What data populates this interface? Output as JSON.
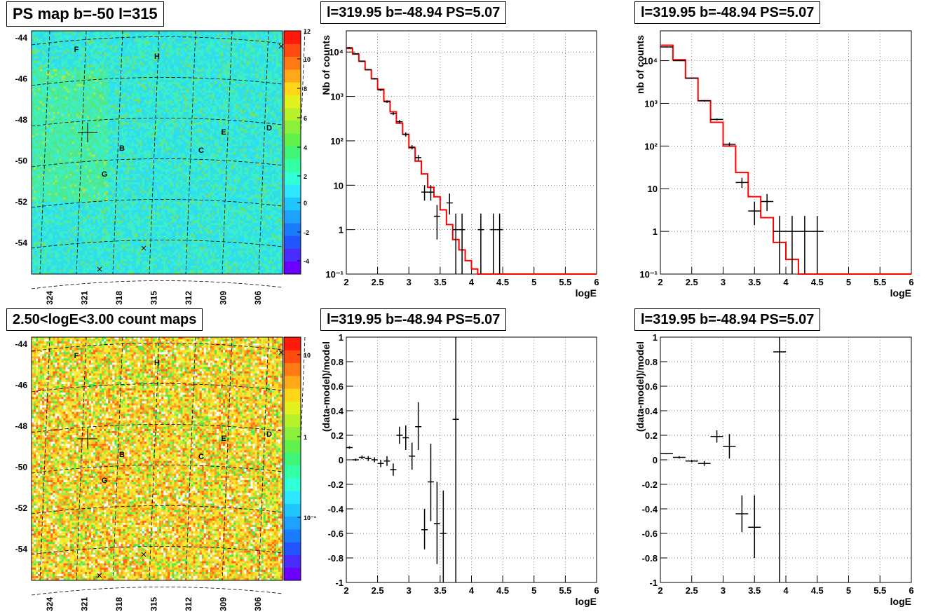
{
  "panels": {
    "map_top": {
      "title": "PS map b=-50 l=315",
      "y_ticks": [
        "-44",
        "-46",
        "-48",
        "-50",
        "-52",
        "-54"
      ],
      "x_ticks": [
        "324",
        "321",
        "318",
        "315",
        "312",
        "309",
        "306"
      ],
      "colorbar_ticks": [
        "12",
        "10",
        "8",
        "6",
        "4",
        "2",
        "0",
        "-2",
        "-4"
      ],
      "labels": [
        "F",
        "H",
        "E",
        "D",
        "B",
        "C",
        "G"
      ]
    },
    "map_bottom": {
      "title": "2.50<logE<3.00 count maps",
      "y_ticks": [
        "-44",
        "-46",
        "-48",
        "-50",
        "-52",
        "-54"
      ],
      "x_ticks": [
        "324",
        "321",
        "318",
        "315",
        "312",
        "309",
        "306"
      ],
      "colorbar_ticks": [
        "10",
        "1",
        "10⁻¹"
      ],
      "labels": [
        "F",
        "H",
        "E",
        "D",
        "B",
        "C",
        "G"
      ]
    },
    "spec_mid_top": {
      "title": "l=319.95 b=-48.94 PS=5.07"
    },
    "spec_right_top": {
      "title": "l=319.95 b=-48.94 PS=5.07"
    },
    "res_mid_bottom": {
      "title": "l=319.95 b=-48.94 PS=5.07"
    },
    "res_right_bottom": {
      "title": "l=319.95 b=-48.94 PS=5.07"
    }
  },
  "colors": {
    "model_line": "#ff0000",
    "data_marker": "#000000",
    "grid": "#555555"
  },
  "chart_data": [
    {
      "type": "line",
      "title": "l=319.95 b=-48.94 PS=5.07",
      "xlabel": "logE",
      "ylabel": "Nb of counts",
      "log_y": true,
      "xlim": [
        2,
        6
      ],
      "ylim": [
        0.1,
        30000
      ],
      "x_ticks": [
        "2",
        "2.5",
        "3",
        "3.5",
        "4",
        "4.5",
        "5",
        "5.5",
        "6"
      ],
      "y_ticks": [
        "10⁻¹",
        "1",
        "10",
        "10²",
        "10³",
        "10⁴"
      ],
      "grid": true,
      "model": {
        "bin_edges": [
          2.0,
          2.1,
          2.2,
          2.3,
          2.4,
          2.5,
          2.6,
          2.7,
          2.8,
          2.9,
          3.0,
          3.1,
          3.2,
          3.3,
          3.4,
          3.5,
          3.6,
          3.7,
          3.8,
          3.9,
          4.0,
          4.1,
          4.2,
          6.0
        ],
        "values": [
          12000,
          9000,
          6200,
          4000,
          2500,
          1450,
          780,
          450,
          250,
          140,
          70,
          35,
          18,
          9,
          5.5,
          2.8,
          1.3,
          0.6,
          0.35,
          0.2,
          0.13,
          0.1,
          0.1
        ]
      },
      "data": [
        {
          "x": 2.05,
          "y": 12500,
          "xerr": 0.05,
          "ylo": 12000,
          "yhi": 13000
        },
        {
          "x": 2.15,
          "y": 9100,
          "xerr": 0.05,
          "ylo": 8800,
          "yhi": 9400
        },
        {
          "x": 2.25,
          "y": 6200,
          "xerr": 0.05,
          "ylo": 6000,
          "yhi": 6400
        },
        {
          "x": 2.35,
          "y": 4000,
          "xerr": 0.05,
          "ylo": 3850,
          "yhi": 4150
        },
        {
          "x": 2.45,
          "y": 2500,
          "xerr": 0.05,
          "ylo": 2400,
          "yhi": 2600
        },
        {
          "x": 2.55,
          "y": 1400,
          "xerr": 0.05,
          "ylo": 1330,
          "yhi": 1470
        },
        {
          "x": 2.65,
          "y": 760,
          "xerr": 0.05,
          "ylo": 710,
          "yhi": 810
        },
        {
          "x": 2.75,
          "y": 410,
          "xerr": 0.05,
          "ylo": 380,
          "yhi": 440
        },
        {
          "x": 2.85,
          "y": 270,
          "xerr": 0.05,
          "ylo": 245,
          "yhi": 295
        },
        {
          "x": 2.95,
          "y": 140,
          "xerr": 0.05,
          "ylo": 125,
          "yhi": 155
        },
        {
          "x": 3.05,
          "y": 72,
          "xerr": 0.05,
          "ylo": 64,
          "yhi": 80
        },
        {
          "x": 3.15,
          "y": 42,
          "xerr": 0.05,
          "ylo": 36,
          "yhi": 48
        },
        {
          "x": 3.25,
          "y": 7,
          "xerr": 0.05,
          "ylo": 4.5,
          "yhi": 10
        },
        {
          "x": 3.35,
          "y": 7,
          "xerr": 0.05,
          "ylo": 4.5,
          "yhi": 10
        },
        {
          "x": 3.45,
          "y": 2,
          "xerr": 0.05,
          "ylo": 0.6,
          "yhi": 3.6
        },
        {
          "x": 3.65,
          "y": 4,
          "xerr": 0.05,
          "ylo": 2.2,
          "yhi": 6.5
        },
        {
          "x": 3.75,
          "y": 1,
          "xerr": 0.05,
          "ylo": 0.1,
          "yhi": 2.3
        },
        {
          "x": 3.85,
          "y": 1,
          "xerr": 0.05,
          "ylo": 0.1,
          "yhi": 2.3
        },
        {
          "x": 4.15,
          "y": 1,
          "xerr": 0.05,
          "ylo": 0.1,
          "yhi": 2.3
        },
        {
          "x": 4.35,
          "y": 1,
          "xerr": 0.05,
          "ylo": 0.1,
          "yhi": 2.3
        },
        {
          "x": 4.45,
          "y": 1,
          "xerr": 0.05,
          "ylo": 0.1,
          "yhi": 2.3
        }
      ]
    },
    {
      "type": "line",
      "title": "l=319.95 b=-48.94 PS=5.07",
      "xlabel": "logE",
      "ylabel": "nb of counts",
      "log_y": true,
      "xlim": [
        2,
        6
      ],
      "ylim": [
        0.1,
        50000
      ],
      "x_ticks": [
        "2",
        "2.5",
        "3",
        "3.5",
        "4",
        "4.5",
        "5",
        "5.5",
        "6"
      ],
      "y_ticks": [
        "10⁻¹",
        "1",
        "10",
        "10²",
        "10³",
        "10⁴"
      ],
      "grid": true,
      "model": {
        "bin_edges": [
          2.0,
          2.2,
          2.4,
          2.6,
          2.8,
          3.0,
          3.2,
          3.4,
          3.6,
          3.8,
          4.0,
          4.2,
          6.0
        ],
        "values": [
          23000,
          10500,
          3900,
          1150,
          360,
          100,
          24,
          6.5,
          2.1,
          0.55,
          0.22,
          0.1
        ]
      },
      "data": [
        {
          "x": 2.1,
          "y": 21000,
          "xerr": 0.1,
          "ylo": 20500,
          "yhi": 21500
        },
        {
          "x": 2.3,
          "y": 10000,
          "xerr": 0.1,
          "ylo": 9800,
          "yhi": 10200
        },
        {
          "x": 2.5,
          "y": 3900,
          "xerr": 0.1,
          "ylo": 3800,
          "yhi": 4000
        },
        {
          "x": 2.7,
          "y": 1150,
          "xerr": 0.1,
          "ylo": 1100,
          "yhi": 1200
        },
        {
          "x": 2.9,
          "y": 420,
          "xerr": 0.1,
          "ylo": 400,
          "yhi": 440
        },
        {
          "x": 3.1,
          "y": 110,
          "xerr": 0.1,
          "ylo": 100,
          "yhi": 120
        },
        {
          "x": 3.3,
          "y": 14,
          "xerr": 0.1,
          "ylo": 10.5,
          "yhi": 18
        },
        {
          "x": 3.5,
          "y": 3,
          "xerr": 0.1,
          "ylo": 1.4,
          "yhi": 5
        },
        {
          "x": 3.7,
          "y": 5,
          "xerr": 0.1,
          "ylo": 3,
          "yhi": 7.5
        },
        {
          "x": 3.9,
          "y": 1,
          "xerr": 0.1,
          "ylo": 0.1,
          "yhi": 2.3
        },
        {
          "x": 4.1,
          "y": 1,
          "xerr": 0.1,
          "ylo": 0.1,
          "yhi": 2.3
        },
        {
          "x": 4.3,
          "y": 1,
          "xerr": 0.1,
          "ylo": 0.1,
          "yhi": 2.3
        },
        {
          "x": 4.5,
          "y": 1,
          "xerr": 0.1,
          "ylo": 0.1,
          "yhi": 2.3
        }
      ]
    },
    {
      "type": "scatter",
      "title": "l=319.95 b=-48.94 PS=5.07",
      "xlabel": "logE",
      "ylabel": "(data-model)/model",
      "xlim": [
        2,
        6
      ],
      "ylim": [
        -1,
        1
      ],
      "x_ticks": [
        "2",
        "2.5",
        "3",
        "3.5",
        "4",
        "4.5",
        "5",
        "5.5",
        "6"
      ],
      "y_ticks": [
        "-1",
        "-0.8",
        "-0.6",
        "-0.4",
        "-0.2",
        "0",
        "0.2",
        "0.4",
        "0.6",
        "0.8",
        "1"
      ],
      "grid": true,
      "data": [
        {
          "x": 2.05,
          "y": 0.1,
          "xerr": 0.05,
          "ylo": 0.09,
          "yhi": 0.11
        },
        {
          "x": 2.15,
          "y": 0.0,
          "xerr": 0.05,
          "ylo": -0.01,
          "yhi": 0.01
        },
        {
          "x": 2.25,
          "y": 0.02,
          "xerr": 0.05,
          "ylo": 0.005,
          "yhi": 0.035
        },
        {
          "x": 2.35,
          "y": 0.01,
          "xerr": 0.05,
          "ylo": -0.01,
          "yhi": 0.03
        },
        {
          "x": 2.45,
          "y": 0.0,
          "xerr": 0.05,
          "ylo": -0.02,
          "yhi": 0.02
        },
        {
          "x": 2.55,
          "y": -0.03,
          "xerr": 0.05,
          "ylo": -0.06,
          "yhi": 0.0
        },
        {
          "x": 2.65,
          "y": -0.01,
          "xerr": 0.05,
          "ylo": -0.05,
          "yhi": 0.03
        },
        {
          "x": 2.75,
          "y": -0.08,
          "xerr": 0.05,
          "ylo": -0.13,
          "yhi": -0.03
        },
        {
          "x": 2.85,
          "y": 0.2,
          "xerr": 0.05,
          "ylo": 0.13,
          "yhi": 0.27
        },
        {
          "x": 2.95,
          "y": 0.18,
          "xerr": 0.05,
          "ylo": 0.08,
          "yhi": 0.28
        },
        {
          "x": 3.05,
          "y": 0.03,
          "xerr": 0.05,
          "ylo": -0.08,
          "yhi": 0.14
        },
        {
          "x": 3.15,
          "y": 0.27,
          "xerr": 0.05,
          "ylo": 0.08,
          "yhi": 0.47
        },
        {
          "x": 3.25,
          "y": -0.57,
          "xerr": 0.05,
          "ylo": -0.73,
          "yhi": -0.4
        },
        {
          "x": 3.35,
          "y": -0.18,
          "xerr": 0.05,
          "ylo": -0.5,
          "yhi": 0.13
        },
        {
          "x": 3.45,
          "y": -0.52,
          "xerr": 0.05,
          "ylo": -0.85,
          "yhi": -0.18
        },
        {
          "x": 3.55,
          "y": -0.6,
          "xerr": 0.05,
          "ylo": -1.0,
          "yhi": -0.25
        },
        {
          "x": 3.75,
          "y": 0.33,
          "xerr": 0.05,
          "ylo": -1.0,
          "yhi": 1.0
        }
      ]
    },
    {
      "type": "scatter",
      "title": "l=319.95 b=-48.94 PS=5.07",
      "xlabel": "logE",
      "ylabel": "(data-model)/model",
      "xlim": [
        2,
        6
      ],
      "ylim": [
        -1,
        1
      ],
      "x_ticks": [
        "2",
        "2.5",
        "3",
        "3.5",
        "4",
        "4.5",
        "5",
        "5.5",
        "6"
      ],
      "y_ticks": [
        "-1",
        "-0.8",
        "-0.6",
        "-0.4",
        "-0.2",
        "0",
        "0.2",
        "0.4",
        "0.6",
        "0.8",
        "1"
      ],
      "grid": true,
      "data": [
        {
          "x": 2.1,
          "y": 0.05,
          "xerr": 0.1,
          "ylo": 0.045,
          "yhi": 0.055
        },
        {
          "x": 2.3,
          "y": 0.02,
          "xerr": 0.1,
          "ylo": 0.01,
          "yhi": 0.03
        },
        {
          "x": 2.5,
          "y": -0.01,
          "xerr": 0.1,
          "ylo": -0.02,
          "yhi": 0.0
        },
        {
          "x": 2.7,
          "y": -0.03,
          "xerr": 0.1,
          "ylo": -0.05,
          "yhi": -0.01
        },
        {
          "x": 2.9,
          "y": 0.19,
          "xerr": 0.1,
          "ylo": 0.14,
          "yhi": 0.24
        },
        {
          "x": 3.1,
          "y": 0.11,
          "xerr": 0.1,
          "ylo": 0.01,
          "yhi": 0.21
        },
        {
          "x": 3.3,
          "y": -0.44,
          "xerr": 0.1,
          "ylo": -0.59,
          "yhi": -0.29
        },
        {
          "x": 3.5,
          "y": -0.55,
          "xerr": 0.1,
          "ylo": -0.8,
          "yhi": -0.29
        },
        {
          "x": 3.9,
          "y": 0.88,
          "xerr": 0.1,
          "ylo": -1.0,
          "yhi": 1.0
        }
      ]
    }
  ]
}
